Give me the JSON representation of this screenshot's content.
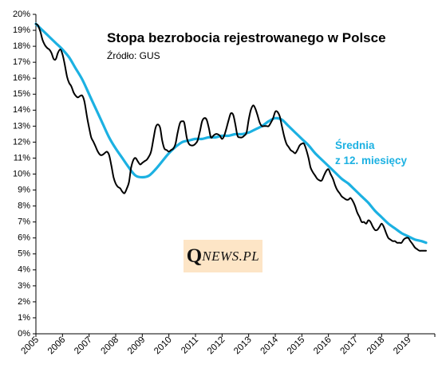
{
  "chart_data": {
    "type": "line",
    "title": "Stopa bezrobocia rejestrowanego w Polsce",
    "subtitle": "Źródło: GUS",
    "annotation": [
      "Średnia",
      "z 12. miesięcy"
    ],
    "x_ticks": [
      "2005",
      "2006",
      "2007",
      "2008",
      "2009",
      "2010",
      "2011",
      "2012",
      "2013",
      "2014",
      "2015",
      "2016",
      "2017",
      "2018",
      "2019"
    ],
    "y_ticks": [
      "0%",
      "1%",
      "2%",
      "3%",
      "4%",
      "5%",
      "6%",
      "7%",
      "8%",
      "9%",
      "10%",
      "11%",
      "12%",
      "13%",
      "14%",
      "15%",
      "16%",
      "17%",
      "18%",
      "19%",
      "20%"
    ],
    "xlim": [
      2005,
      2020
    ],
    "ylim": [
      0,
      20
    ],
    "grid": false,
    "legend": "none",
    "colors": {
      "monthly": "#000000",
      "average": "#1cb1e2"
    },
    "series": [
      {
        "key": "monthly",
        "x": [
          2005.0,
          2005.08,
          2005.17,
          2005.25,
          2005.33,
          2005.42,
          2005.5,
          2005.58,
          2005.67,
          2005.75,
          2005.83,
          2005.92,
          2006.0,
          2006.08,
          2006.17,
          2006.25,
          2006.33,
          2006.42,
          2006.5,
          2006.58,
          2006.67,
          2006.75,
          2006.83,
          2006.92,
          2007.0,
          2007.08,
          2007.17,
          2007.25,
          2007.33,
          2007.42,
          2007.5,
          2007.58,
          2007.67,
          2007.75,
          2007.83,
          2007.92,
          2008.0,
          2008.08,
          2008.17,
          2008.25,
          2008.33,
          2008.42,
          2008.5,
          2008.58,
          2008.67,
          2008.75,
          2008.83,
          2008.92,
          2009.0,
          2009.08,
          2009.17,
          2009.25,
          2009.33,
          2009.42,
          2009.5,
          2009.58,
          2009.67,
          2009.75,
          2009.83,
          2009.92,
          2010.0,
          2010.08,
          2010.17,
          2010.25,
          2010.33,
          2010.42,
          2010.5,
          2010.58,
          2010.67,
          2010.75,
          2010.83,
          2010.92,
          2011.0,
          2011.08,
          2011.17,
          2011.25,
          2011.33,
          2011.42,
          2011.5,
          2011.58,
          2011.67,
          2011.75,
          2011.83,
          2011.92,
          2012.0,
          2012.08,
          2012.17,
          2012.25,
          2012.33,
          2012.42,
          2012.5,
          2012.58,
          2012.67,
          2012.75,
          2012.83,
          2012.92,
          2013.0,
          2013.08,
          2013.17,
          2013.25,
          2013.33,
          2013.42,
          2013.5,
          2013.58,
          2013.67,
          2013.75,
          2013.83,
          2013.92,
          2014.0,
          2014.08,
          2014.17,
          2014.25,
          2014.33,
          2014.42,
          2014.5,
          2014.58,
          2014.67,
          2014.75,
          2014.83,
          2014.92,
          2015.0,
          2015.08,
          2015.17,
          2015.25,
          2015.33,
          2015.42,
          2015.5,
          2015.58,
          2015.67,
          2015.75,
          2015.83,
          2015.92,
          2016.0,
          2016.08,
          2016.17,
          2016.25,
          2016.33,
          2016.42,
          2016.5,
          2016.58,
          2016.67,
          2016.75,
          2016.83,
          2016.92,
          2017.0,
          2017.08,
          2017.17,
          2017.25,
          2017.33,
          2017.42,
          2017.5,
          2017.58,
          2017.67,
          2017.75,
          2017.83,
          2017.92,
          2018.0,
          2018.08,
          2018.17,
          2018.25,
          2018.33,
          2018.42,
          2018.5,
          2018.58,
          2018.67,
          2018.75,
          2018.83,
          2018.92,
          2019.0,
          2019.08,
          2019.17,
          2019.25,
          2019.33,
          2019.42,
          2019.5,
          2019.58,
          2019.67
        ],
        "y": [
          19.4,
          19.3,
          18.9,
          18.4,
          18.1,
          17.9,
          17.8,
          17.6,
          17.2,
          17.2,
          17.6,
          17.8,
          17.5,
          16.9,
          16.1,
          15.7,
          15.5,
          15.1,
          14.9,
          14.8,
          14.9,
          14.9,
          14.5,
          13.6,
          12.9,
          12.3,
          12.0,
          11.7,
          11.4,
          11.2,
          11.2,
          11.3,
          11.4,
          11.2,
          10.6,
          9.8,
          9.4,
          9.2,
          9.1,
          8.9,
          8.8,
          9.1,
          9.5,
          10.4,
          10.9,
          11.0,
          10.8,
          10.6,
          10.7,
          10.8,
          10.9,
          11.1,
          11.4,
          12.2,
          12.9,
          13.1,
          12.9,
          12.1,
          11.6,
          11.5,
          11.4,
          11.5,
          11.6,
          11.9,
          12.6,
          13.2,
          13.3,
          13.2,
          12.3,
          11.9,
          11.8,
          11.8,
          11.9,
          12.1,
          12.7,
          13.3,
          13.5,
          13.4,
          12.9,
          12.3,
          12.4,
          12.5,
          12.5,
          12.4,
          12.2,
          12.4,
          12.9,
          13.4,
          13.8,
          13.7,
          13.1,
          12.4,
          12.3,
          12.3,
          12.4,
          12.6,
          13.4,
          14.0,
          14.3,
          14.1,
          13.7,
          13.2,
          13.0,
          13.0,
          13.0,
          13.0,
          13.2,
          13.5,
          13.9,
          13.9,
          13.6,
          13.0,
          12.4,
          11.9,
          11.7,
          11.5,
          11.4,
          11.3,
          11.5,
          11.8,
          11.9,
          11.9,
          11.5,
          11.0,
          10.4,
          10.1,
          9.9,
          9.7,
          9.6,
          9.6,
          9.9,
          10.2,
          10.3,
          10.0,
          9.7,
          9.3,
          9.0,
          8.8,
          8.6,
          8.5,
          8.4,
          8.4,
          8.5,
          8.3,
          8.0,
          7.6,
          7.3,
          7.0,
          7.0,
          6.9,
          7.1,
          7.0,
          6.7,
          6.5,
          6.5,
          6.7,
          6.9,
          6.7,
          6.3,
          6.0,
          5.9,
          5.8,
          5.8,
          5.7,
          5.7,
          5.7,
          5.9,
          6.0,
          6.0,
          5.8,
          5.6,
          5.4,
          5.3,
          5.2,
          5.2,
          5.2,
          5.2
        ]
      },
      {
        "key": "average",
        "x": [
          2005.0,
          2005.25,
          2005.5,
          2005.75,
          2006.0,
          2006.25,
          2006.5,
          2006.75,
          2007.0,
          2007.25,
          2007.5,
          2007.75,
          2008.0,
          2008.25,
          2008.5,
          2008.75,
          2009.0,
          2009.25,
          2009.5,
          2009.75,
          2010.0,
          2010.25,
          2010.5,
          2010.75,
          2011.0,
          2011.25,
          2011.5,
          2011.75,
          2012.0,
          2012.25,
          2012.5,
          2012.75,
          2013.0,
          2013.25,
          2013.5,
          2013.75,
          2014.0,
          2014.25,
          2014.5,
          2014.75,
          2015.0,
          2015.25,
          2015.5,
          2015.75,
          2016.0,
          2016.25,
          2016.5,
          2016.75,
          2017.0,
          2017.25,
          2017.5,
          2017.75,
          2018.0,
          2018.25,
          2018.5,
          2018.75,
          2019.0,
          2019.25,
          2019.5,
          2019.67
        ],
        "y": [
          19.4,
          19.0,
          18.6,
          18.2,
          17.8,
          17.3,
          16.6,
          15.9,
          15.0,
          14.1,
          13.2,
          12.3,
          11.6,
          11.0,
          10.4,
          9.9,
          9.8,
          9.9,
          10.3,
          10.8,
          11.3,
          11.7,
          12.0,
          12.1,
          12.2,
          12.2,
          12.3,
          12.3,
          12.4,
          12.4,
          12.5,
          12.5,
          12.6,
          12.8,
          13.0,
          13.3,
          13.5,
          13.4,
          13.0,
          12.6,
          12.2,
          11.8,
          11.3,
          10.9,
          10.5,
          10.1,
          9.7,
          9.4,
          9.0,
          8.6,
          8.2,
          7.7,
          7.3,
          6.9,
          6.6,
          6.3,
          6.1,
          5.9,
          5.8,
          5.7
        ]
      }
    ]
  },
  "branding": {
    "logo_q": "Q",
    "logo_rest": "NEWS.PL"
  }
}
